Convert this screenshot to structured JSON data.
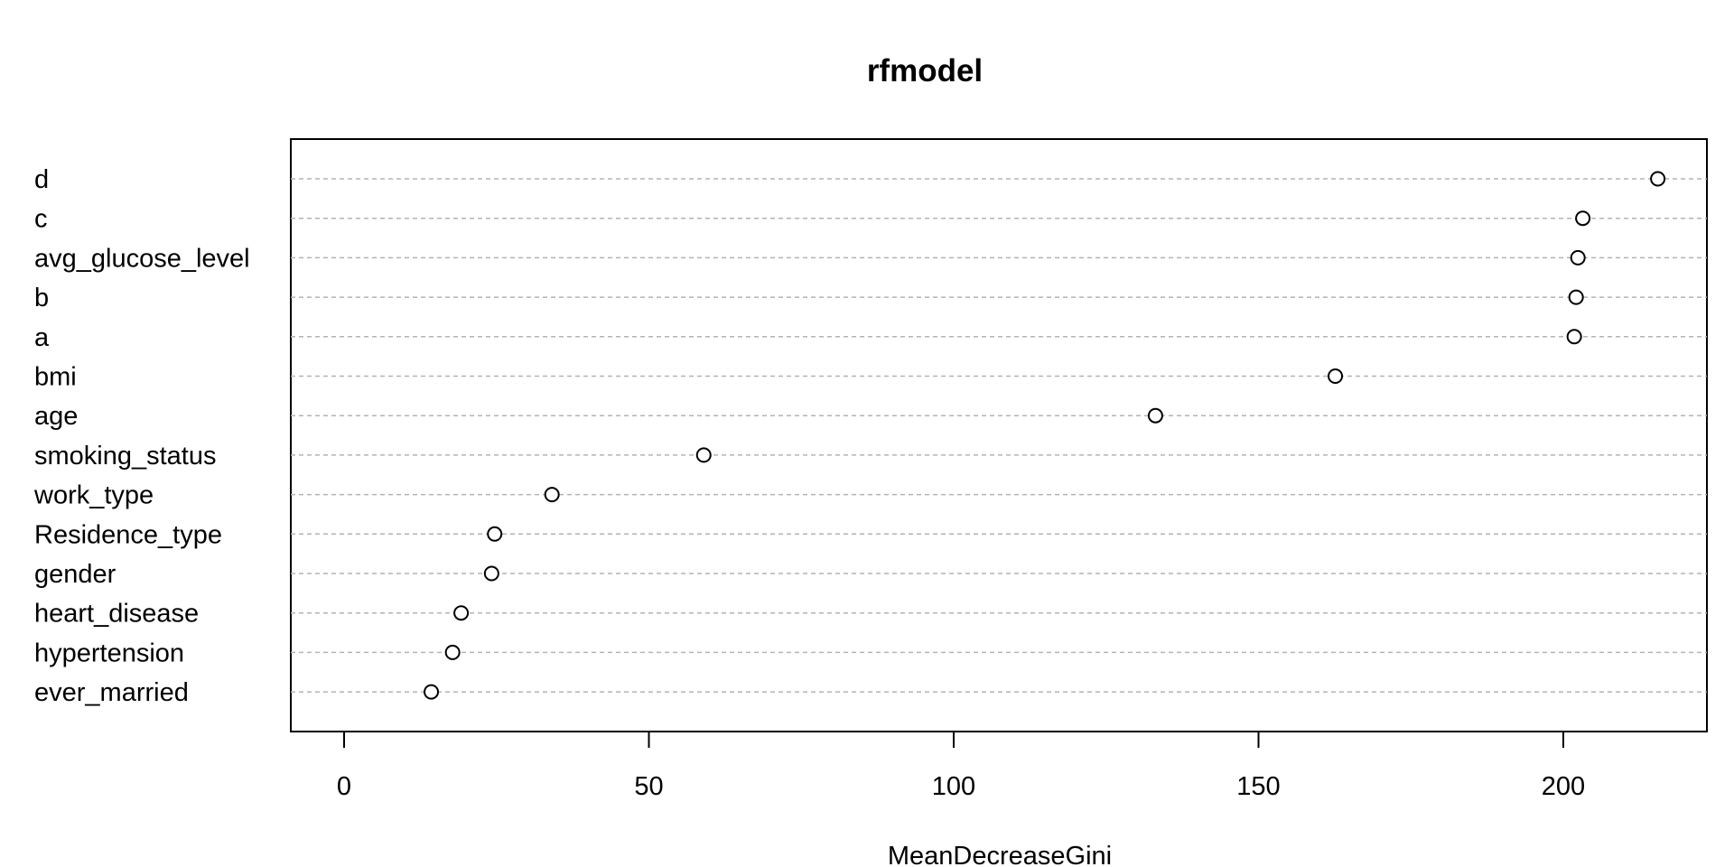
{
  "chart_data": {
    "type": "scatter",
    "subtype": "dotchart",
    "title": "rfmodel",
    "xlabel": "MeanDecreaseGini",
    "ylabel": "",
    "xlim": [
      0,
      225
    ],
    "xticks": [
      0,
      50,
      100,
      150,
      200
    ],
    "grid": "dashed horizontal lines",
    "legend": "none",
    "categories": [
      "d",
      "c",
      "avg_glucose_level",
      "b",
      "a",
      "bmi",
      "age",
      "smoking_status",
      "work_type",
      "Residence_type",
      "gender",
      "heart_disease",
      "hypertension",
      "ever_married"
    ],
    "values": [
      215.5,
      203.2,
      202.4,
      202.1,
      201.8,
      162.6,
      133.1,
      59.0,
      34.1,
      24.7,
      24.2,
      19.2,
      17.8,
      14.3
    ]
  }
}
